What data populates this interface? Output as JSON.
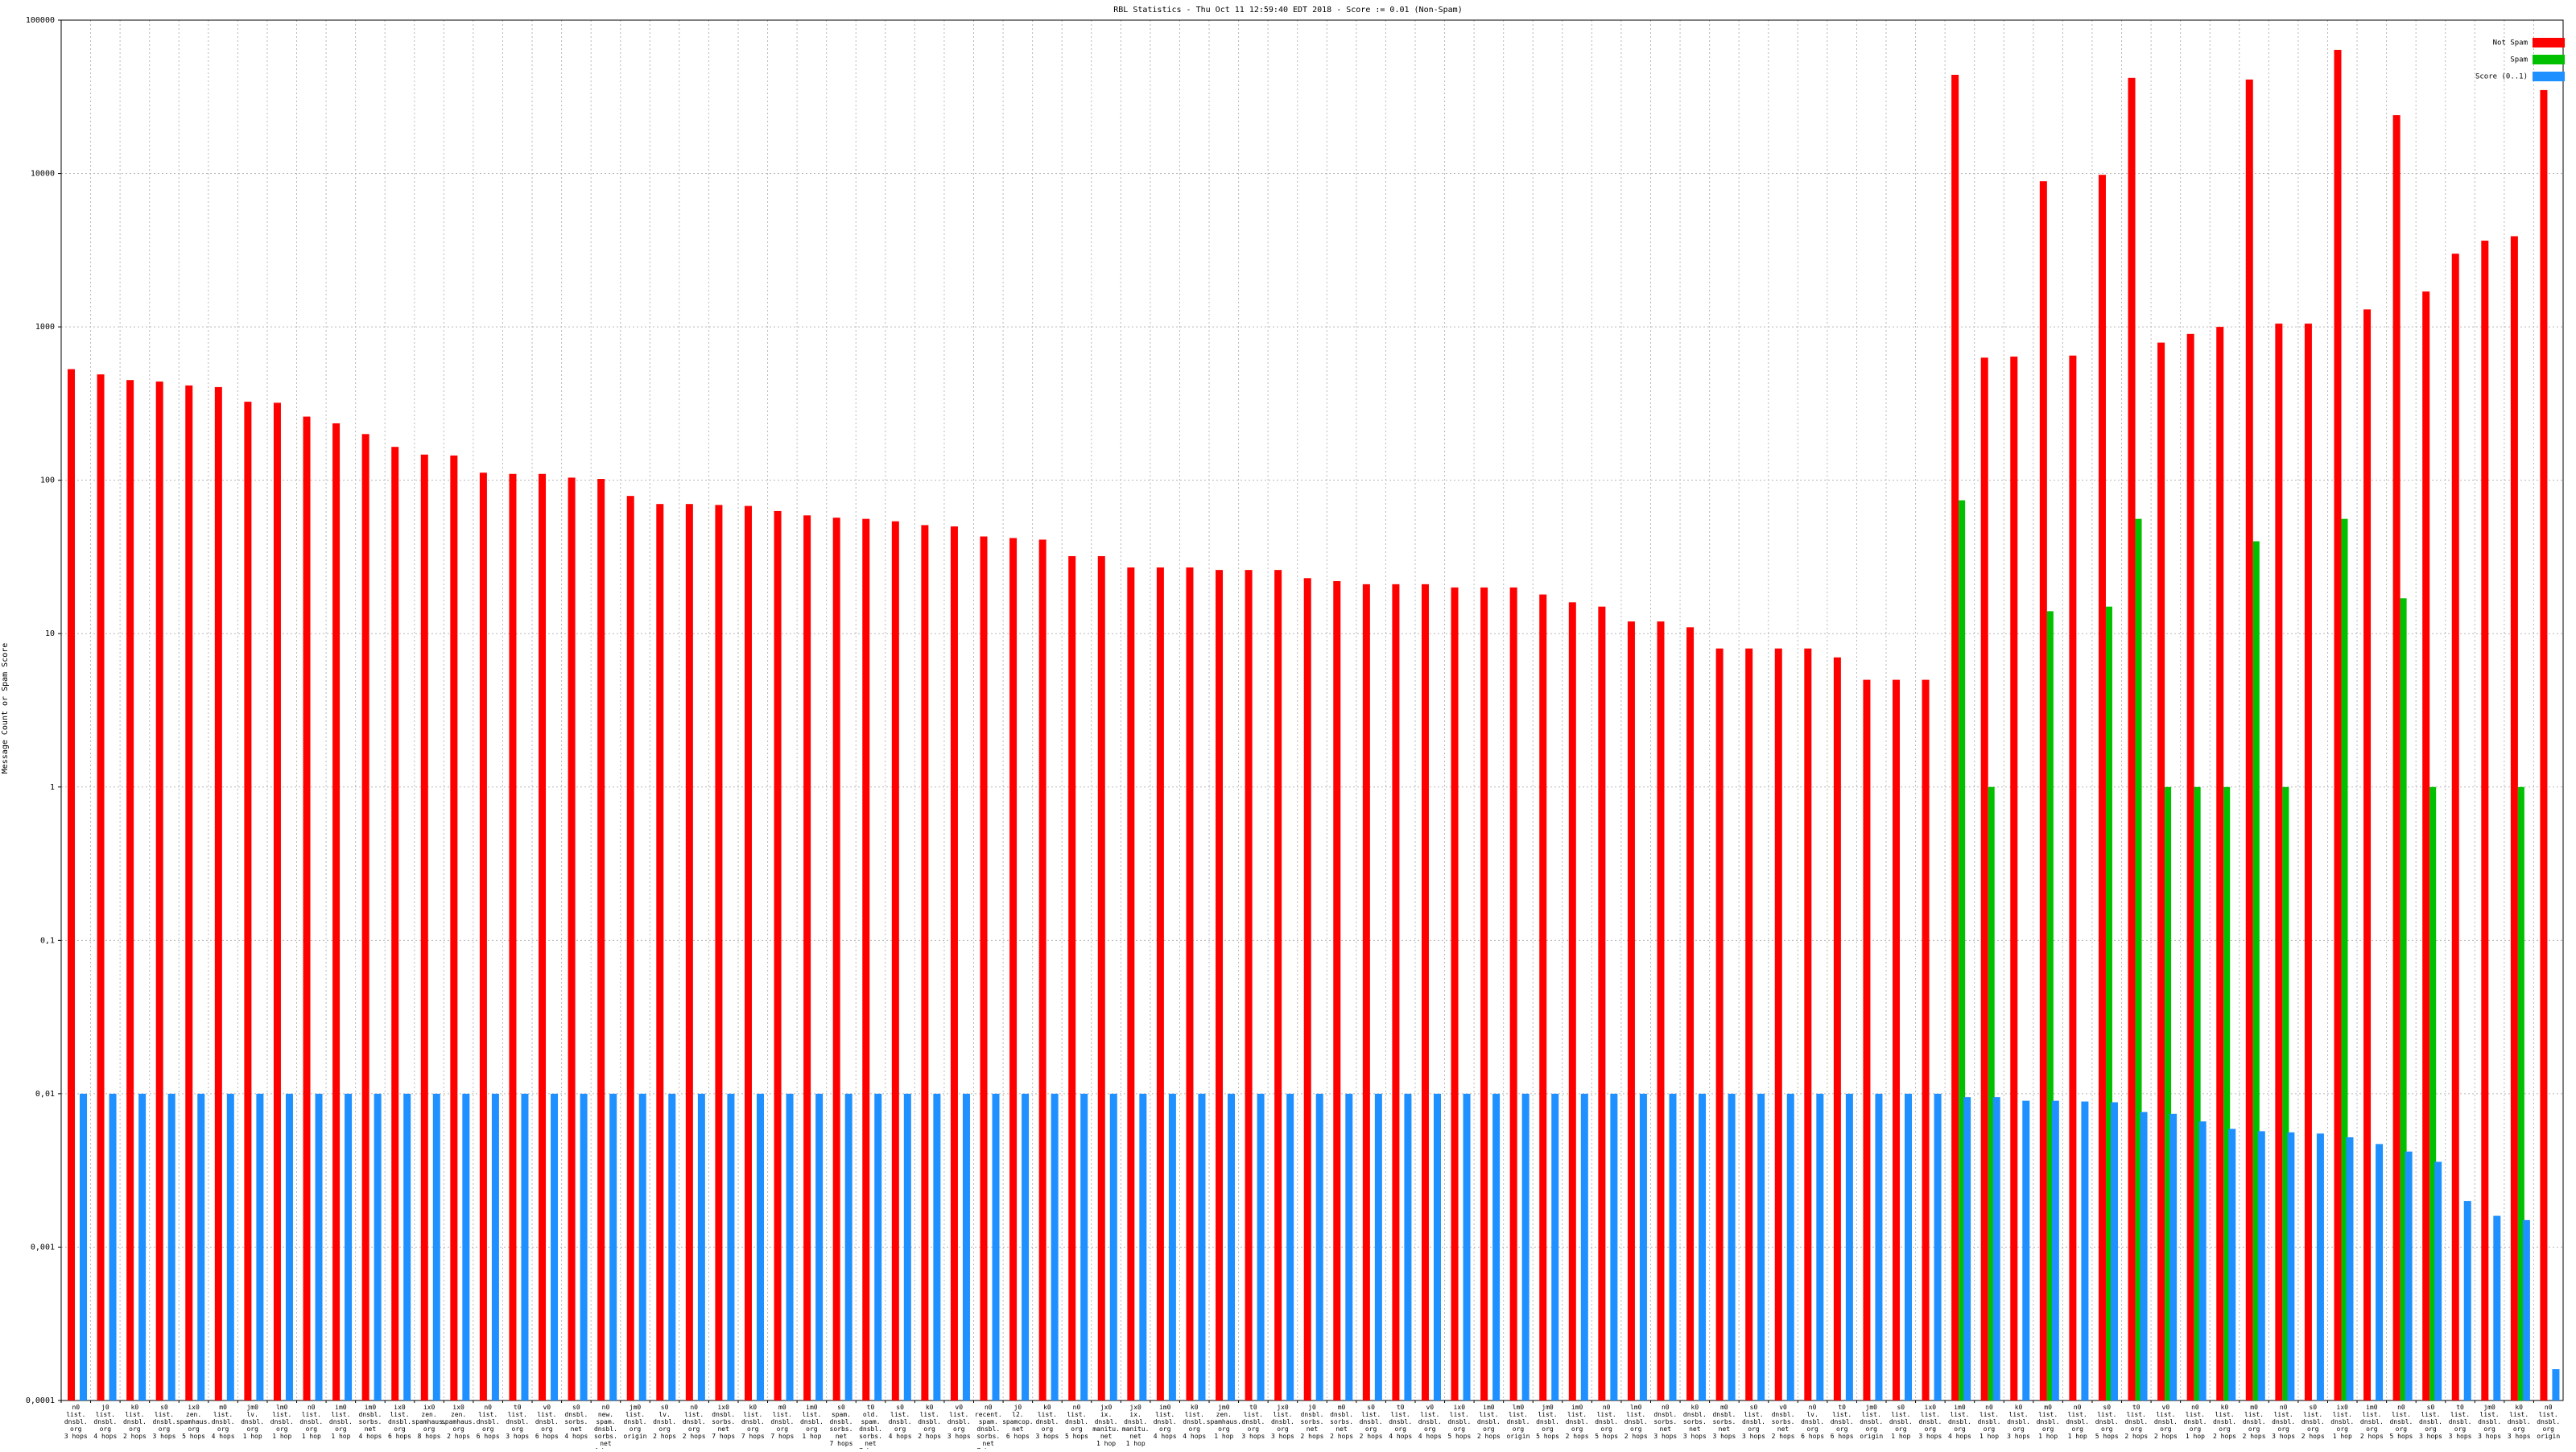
{
  "chart_data": {
    "type": "bar",
    "title": "RBL Statistics - Thu Oct 11 12:59:40 EDT 2018 - Score := 0.01 (Non-Spam)",
    "y_label": "Message Count or Spam Score",
    "log_scale": true,
    "grid": true,
    "legend_position": "top-right",
    "categories": [
      "n0\nlist.\ndnsbl.\norg\n3 hops",
      "j0\nlist.\ndnsbl.\norg\n4 hops",
      "k0\nlist.\ndnsbl.\norg\n2 hops",
      "s0\nlist.\ndnsbl.\norg\n3 hops",
      "ix0\nzen.\nspamhaus.\norg\n5 hops",
      "m0\nlist.\ndnsbl.\norg\n4 hops",
      "jm0\nlv.\ndnsbl.\norg\n1 hop",
      "lm0\nlist.\ndnsbl.\norg\n1 hop",
      "n0\nlist.\ndnsbl.\norg\n1 hop",
      "im0\nlist.\ndnsbl.\norg\n1 hop",
      "im0\ndnsbl.\nsorbs.\nnet\n4 hops",
      "ix0\nlist.\ndnsbl.\norg\n6 hops",
      "ix0\nzen.\nspamhaus.\norg\n8 hops",
      "ix0\nzen.\nspamhaus.\norg\n2 hops",
      "n0\nlist.\ndnsbl.\norg\n6 hops",
      "t0\nlist.\ndnsbl.\norg\n3 hops",
      "v0\nlist.\ndnsbl.\norg\n6 hops",
      "s0\ndnsbl.\nsorbs.\nnet\n4 hops",
      "n0\nnew.\nspam.\ndnsbl.\nsorbs.\nnet\n4 hops",
      "jm0\nlist.\ndnsbl.\norg\norigin",
      "s0\nlv.\ndnsbl.\norg\n2 hops",
      "n0\nlist.\ndnsbl.\norg\n2 hops",
      "ix0\ndnsbl.\nsorbs.\nnet\n7 hops",
      "k0\nlist.\ndnsbl.\norg\n7 hops",
      "m0\nlist.\ndnsbl.\norg\n7 hops",
      "im0\nlist.\ndnsbl.\norg\n1 hop",
      "s0\nspam.\ndnsbl.\nsorbs.\nnet\n7 hops",
      "t0\nold.\nspam.\ndnsbl.\nsorbs.\nnet\n7 hops",
      "s0\nlist.\ndnsbl.\norg\n4 hops",
      "k0\nlist.\ndnsbl.\norg\n2 hops",
      "v0\nlist.\ndnsbl.\norg\n3 hops",
      "n0\nrecent.\nspam.\ndnsbl.\nsorbs.\nnet\n7 hops",
      "j0\nl2.\nspamcop.\nnet\n6 hops",
      "k0\nlist.\ndnsbl.\norg\n3 hops",
      "n0\nlist.\ndnsbl.\norg\n5 hops",
      "jx0\nix.\ndnsbl.\nmanitu.\nnet\n1 hop",
      "jx0\nix.\ndnsbl.\nmanitu.\nnet\n1 hop",
      "im0\nlist.\ndnsbl.\norg\n4 hops",
      "k0\nlist.\ndnsbl.\norg\n4 hops",
      "jm0\nzen.\nspamhaus.\norg\n1 hop",
      "t0\nlist.\ndnsbl.\norg\n3 hops",
      "jx0\nlist.\ndnsbl.\norg\n3 hops",
      "j0\ndnsbl.\nsorbs.\nnet\n2 hops",
      "m0\ndnsbl.\nsorbs.\nnet\n2 hops",
      "s0\nlist.\ndnsbl.\norg\n2 hops",
      "t0\nlist.\ndnsbl.\norg\n4 hops",
      "v0\nlist.\ndnsbl.\norg\n4 hops",
      "ix0\nlist.\ndnsbl.\norg\n5 hops",
      "im0\nlist.\ndnsbl.\norg\n2 hops",
      "lm0\nlist.\ndnsbl.\norg\norigin",
      "jm0\nlist.\ndnsbl.\norg\n5 hops",
      "im0\nlist.\ndnsbl.\norg\n2 hops",
      "n0\nlist.\ndnsbl.\norg\n5 hops",
      "lm0\nlist.\ndnsbl.\norg\n2 hops",
      "n0\ndnsbl.\nsorbs.\nnet\n3 hops",
      "k0\ndnsbl.\nsorbs.\nnet\n3 hops",
      "m0\ndnsbl.\nsorbs.\nnet\n3 hops",
      "s0\nlist.\ndnsbl.\norg\n3 hops",
      "v0\ndnsbl.\nsorbs.\nnet\n2 hops",
      "n0\nlv.\ndnsbl.\norg\n6 hops",
      "t0\nlist.\ndnsbl.\norg\n6 hops",
      "jm0\nlist.\ndnsbl.\norg\norigin",
      "s0\nlist.\ndnsbl.\norg\n1 hop",
      "ix0\nlist.\ndnsbl.\norg\n3 hops",
      "im0\nlist.\ndnsbl.\norg\n4 hops",
      "n0\nlist.\ndnsbl.\norg\n1 hop",
      "k0\nlist.\ndnsbl.\norg\n3 hops",
      "m0\nlist.\ndnsbl.\norg\n1 hop",
      "n0\nlist.\ndnsbl.\norg\n1 hop",
      "s0\nlist.\ndnsbl.\norg\n5 hops",
      "t0\nlist.\ndnsbl.\norg\n2 hops",
      "v0\nlist.\ndnsbl.\norg\n2 hops",
      "n0\nlist.\ndnsbl.\norg\n1 hop",
      "k0\nlist.\ndnsbl.\norg\n2 hops",
      "m0\nlist.\ndnsbl.\norg\n2 hops",
      "n0\nlist.\ndnsbl.\norg\n3 hops",
      "s0\nlist.\ndnsbl.\norg\n2 hops",
      "ix0\nlist.\ndnsbl.\norg\n1 hop",
      "im0\nlist.\ndnsbl.\norg\n2 hops",
      "n0\nlist.\ndnsbl.\norg\n5 hops",
      "s0\nlist.\ndnsbl.\norg\n3 hops",
      "t0\nlist.\ndnsbl.\norg\n3 hops",
      "jm0\nlist.\ndnsbl.\norg\n3 hops",
      "k0\nlist.\ndnsbl.\norg\n3 hops",
      "n0\nlist.\ndnsbl.\norg\norigin"
    ],
    "series": [
      {
        "name": "Not Spam",
        "color": "#ff0000",
        "values": [
          530,
          490,
          450,
          440,
          415,
          405,
          325,
          320,
          260,
          235,
          200,
          165,
          147,
          145,
          112,
          110,
          110,
          104,
          102,
          79,
          70,
          70,
          69,
          68,
          63,
          59,
          57,
          56,
          54,
          51,
          50,
          43,
          42,
          41,
          32,
          32,
          27,
          27,
          27,
          26,
          26,
          26,
          23,
          22,
          21,
          21,
          21,
          20,
          20,
          20,
          18,
          16,
          15,
          12,
          12,
          11,
          8,
          8,
          8,
          8,
          7,
          5,
          5,
          5,
          44000,
          630,
          640,
          8900,
          650,
          9800,
          42000,
          790,
          900,
          1000,
          41000,
          1050,
          1050,
          64000,
          1300,
          24000,
          1700,
          3000,
          3650,
          3900,
          35000
        ]
      },
      {
        "name": "Spam",
        "color": "#00c000",
        "values": [
          null,
          null,
          null,
          null,
          null,
          null,
          null,
          null,
          null,
          null,
          null,
          null,
          null,
          null,
          null,
          null,
          null,
          null,
          null,
          null,
          null,
          null,
          null,
          null,
          null,
          null,
          null,
          null,
          null,
          null,
          null,
          null,
          null,
          null,
          null,
          null,
          null,
          null,
          null,
          null,
          null,
          null,
          null,
          null,
          null,
          null,
          null,
          null,
          null,
          null,
          null,
          null,
          null,
          null,
          null,
          null,
          null,
          null,
          null,
          null,
          null,
          null,
          null,
          null,
          74,
          1,
          null,
          14,
          null,
          15,
          56,
          1,
          1,
          1,
          40,
          1,
          null,
          56,
          null,
          17,
          1,
          null,
          null,
          1,
          null
        ]
      },
      {
        "name": "Score (0..1)",
        "color": "#1e90ff",
        "values": [
          0.01,
          0.01,
          0.01,
          0.01,
          0.01,
          0.01,
          0.01,
          0.01,
          0.01,
          0.01,
          0.01,
          0.01,
          0.01,
          0.01,
          0.01,
          0.01,
          0.01,
          0.01,
          0.01,
          0.01,
          0.01,
          0.01,
          0.01,
          0.01,
          0.01,
          0.01,
          0.01,
          0.01,
          0.01,
          0.01,
          0.01,
          0.01,
          0.01,
          0.01,
          0.01,
          0.01,
          0.01,
          0.01,
          0.01,
          0.01,
          0.01,
          0.01,
          0.01,
          0.01,
          0.01,
          0.01,
          0.01,
          0.01,
          0.01,
          0.01,
          0.01,
          0.01,
          0.01,
          0.01,
          0.01,
          0.01,
          0.01,
          0.01,
          0.01,
          0.01,
          0.01,
          0.01,
          0.01,
          0.01,
          0.0095,
          0.0095,
          0.009,
          0.009,
          0.0089,
          0.0088,
          0.0076,
          0.0074,
          0.0066,
          0.0059,
          0.0057,
          0.0056,
          0.0055,
          0.0052,
          0.0047,
          0.0042,
          0.0036,
          0.002,
          0.0016,
          0.0015,
          0.00016
        ]
      }
    ],
    "ylim": [
      0.0001,
      100000
    ],
    "yticks": [
      {
        "value": 0.0001,
        "label": "0,0001"
      },
      {
        "value": 0.001,
        "label": "0,001"
      },
      {
        "value": 0.01,
        "label": "0,01"
      },
      {
        "value": 0.1,
        "label": "0,1"
      },
      1,
      10,
      100,
      1000,
      10000,
      100000
    ]
  }
}
